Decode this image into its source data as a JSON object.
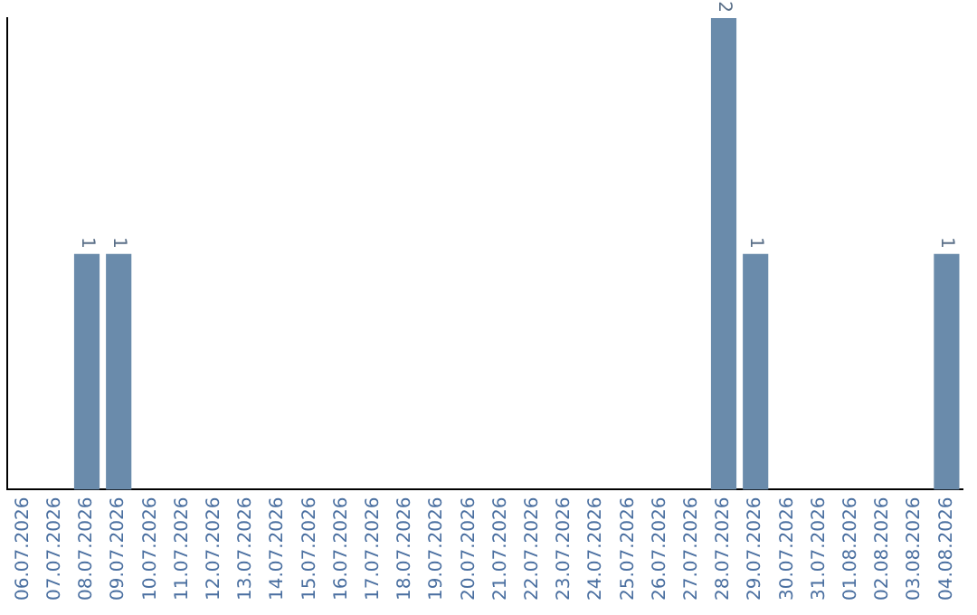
{
  "chart_data": {
    "type": "bar",
    "categories": [
      "06.07.2026",
      "07.07.2026",
      "08.07.2026",
      "09.07.2026",
      "10.07.2026",
      "11.07.2026",
      "12.07.2026",
      "13.07.2026",
      "14.07.2026",
      "15.07.2026",
      "16.07.2026",
      "17.07.2026",
      "18.07.2026",
      "19.07.2026",
      "20.07.2026",
      "21.07.2026",
      "22.07.2026",
      "23.07.2026",
      "24.07.2026",
      "25.07.2026",
      "26.07.2026",
      "27.07.2026",
      "28.07.2026",
      "29.07.2026",
      "30.07.2026",
      "31.07.2026",
      "01.08.2026",
      "02.08.2026",
      "03.08.2026",
      "04.08.2026"
    ],
    "values": [
      0,
      0,
      1,
      1,
      0,
      0,
      0,
      0,
      0,
      0,
      0,
      0,
      0,
      0,
      0,
      0,
      0,
      0,
      0,
      0,
      0,
      0,
      2,
      1,
      0,
      0,
      0,
      0,
      0,
      1
    ],
    "value_labels": [
      null,
      null,
      "1",
      "1",
      null,
      null,
      null,
      null,
      null,
      null,
      null,
      null,
      null,
      null,
      null,
      null,
      null,
      null,
      null,
      null,
      null,
      null,
      "2",
      "1",
      null,
      null,
      null,
      null,
      null,
      "1"
    ],
    "color": "#6a8bab",
    "ylim": [
      0,
      2
    ],
    "tick_labels": "x",
    "grid": false,
    "legend": false
  }
}
